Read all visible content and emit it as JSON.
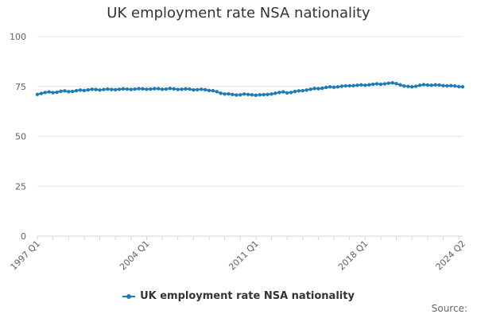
{
  "title": "UK employment rate NSA nationality",
  "legend": {
    "label": "UK employment rate NSA nationality"
  },
  "source_label": "Source:",
  "colors": {
    "series": "#1f7bb7",
    "grid": "#e6e6e6",
    "axis": "#ccd6eb",
    "text": "#606060"
  },
  "chart_data": {
    "type": "line",
    "title": "UK employment rate NSA nationality",
    "xlabel": "",
    "ylabel": "",
    "ylim": [
      0,
      100
    ],
    "yticks": [
      0,
      25,
      50,
      75,
      100
    ],
    "grid": true,
    "legend_placement": "bottom",
    "x_tick_labels": [
      "1997 Q1",
      "2004 Q1",
      "2011 Q1",
      "2018 Q1",
      "2024 Q2"
    ],
    "x_tick_label_indices": [
      0,
      28,
      56,
      84,
      109
    ],
    "series": [
      {
        "name": "UK employment rate NSA nationality",
        "x_start": "1997 Q1",
        "x_end": "2024 Q2",
        "frequency": "quarterly",
        "values": [
          71.0,
          71.5,
          72.0,
          72.3,
          71.9,
          72.1,
          72.6,
          72.8,
          72.4,
          72.5,
          72.9,
          73.2,
          73.0,
          73.3,
          73.6,
          73.5,
          73.2,
          73.5,
          73.7,
          73.5,
          73.4,
          73.6,
          73.8,
          73.7,
          73.5,
          73.7,
          73.9,
          73.8,
          73.6,
          73.7,
          73.9,
          73.9,
          73.6,
          73.7,
          74.0,
          73.8,
          73.5,
          73.6,
          73.8,
          73.7,
          73.3,
          73.4,
          73.6,
          73.4,
          73.0,
          72.9,
          72.4,
          71.6,
          71.2,
          71.3,
          71.0,
          70.7,
          70.8,
          71.2,
          71.0,
          70.8,
          70.6,
          70.8,
          70.9,
          71.0,
          71.2,
          71.6,
          72.0,
          72.3,
          71.8,
          72.0,
          72.5,
          72.8,
          72.9,
          73.2,
          73.6,
          74.0,
          73.9,
          74.1,
          74.5,
          74.8,
          74.6,
          74.8,
          75.1,
          75.3,
          75.3,
          75.4,
          75.6,
          75.8,
          75.6,
          75.8,
          76.1,
          76.3,
          76.1,
          76.3,
          76.6,
          76.8,
          76.4,
          75.8,
          75.2,
          75.0,
          74.8,
          75.1,
          75.6,
          75.9,
          75.7,
          75.6,
          75.8,
          75.7,
          75.4,
          75.3,
          75.4,
          75.2,
          74.9,
          74.8
        ]
      }
    ]
  }
}
